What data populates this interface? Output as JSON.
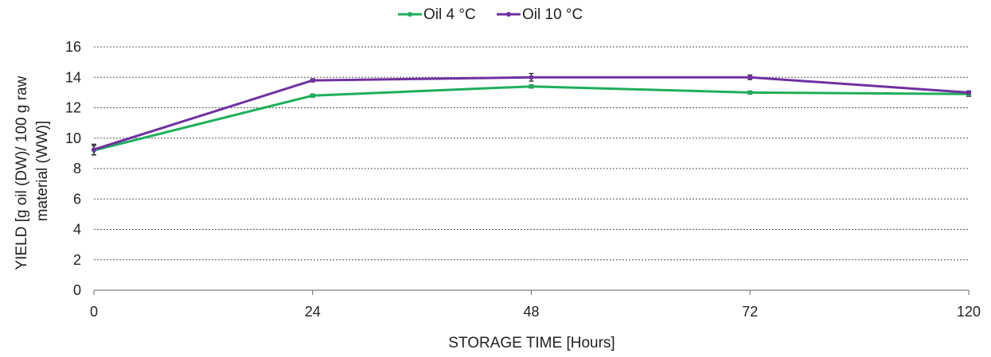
{
  "chart_data": {
    "type": "line",
    "title": "",
    "xlabel": "STORAGE TIME [Hours]",
    "ylabel_lines": [
      "YIELD [g oil (DW)/ 100 g raw",
      "material (WW)]"
    ],
    "categories": [
      "0",
      "24",
      "48",
      "72",
      "120"
    ],
    "ylim": [
      0,
      16
    ],
    "yticks": [
      0,
      2,
      4,
      6,
      8,
      10,
      12,
      14,
      16
    ],
    "grid": true,
    "legend_position": "top",
    "series": [
      {
        "name": "Oil 4 °C",
        "color": "#1fae5b",
        "values": [
          9.2,
          12.8,
          13.4,
          13.0,
          12.9
        ],
        "errors": [
          0.3,
          0.1,
          0.1,
          0.1,
          0.15
        ]
      },
      {
        "name": "Oil 10 °C",
        "color": "#7030a0",
        "values": [
          9.25,
          13.8,
          14.0,
          14.0,
          13.0
        ],
        "errors": [
          0.35,
          0.1,
          0.25,
          0.15,
          0.1
        ]
      }
    ]
  }
}
